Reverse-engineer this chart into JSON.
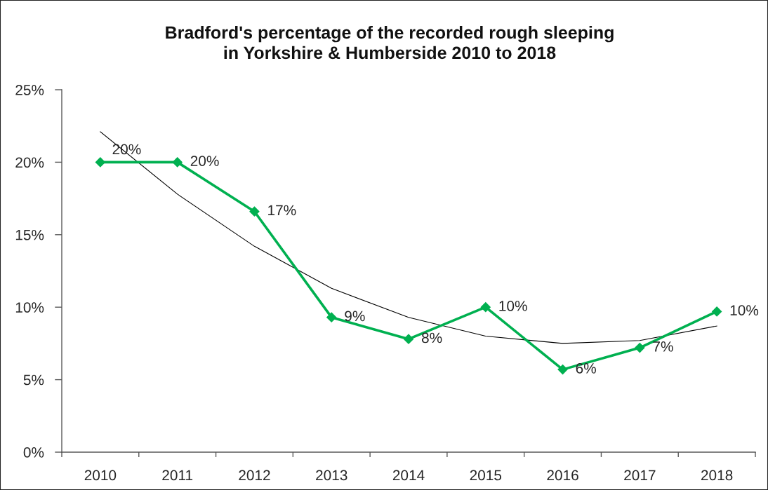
{
  "chart_data": {
    "type": "line",
    "title": "Bradford's percentage of the recorded rough sleeping\nin Yorkshire & Humberside 2010 to 2018",
    "categories": [
      "2010",
      "2011",
      "2012",
      "2013",
      "2014",
      "2015",
      "2016",
      "2017",
      "2018"
    ],
    "series": [
      {
        "color": "#00b050",
        "marker": "diamond",
        "values": [
          20.0,
          20.0,
          16.6,
          9.3,
          7.8,
          10.0,
          5.7,
          7.2,
          9.7
        ],
        "value_labels": [
          "20%",
          "20%",
          "17%",
          "9%",
          "8%",
          "10%",
          "6%",
          "7%",
          "10%"
        ]
      },
      {
        "color": "#000000",
        "marker": "none",
        "values": [
          22.1,
          17.8,
          14.2,
          11.3,
          9.3,
          8.0,
          7.5,
          7.7,
          8.7
        ]
      }
    ],
    "ylim": [
      0,
      25
    ],
    "yticks": [
      {
        "value": 0,
        "label": "0%"
      },
      {
        "value": 5,
        "label": "5%"
      },
      {
        "value": 10,
        "label": "10%"
      },
      {
        "value": 15,
        "label": "15%"
      },
      {
        "value": 20,
        "label": "20%"
      },
      {
        "value": 25,
        "label": "25%"
      }
    ],
    "grid": false,
    "line_style": "solid"
  }
}
